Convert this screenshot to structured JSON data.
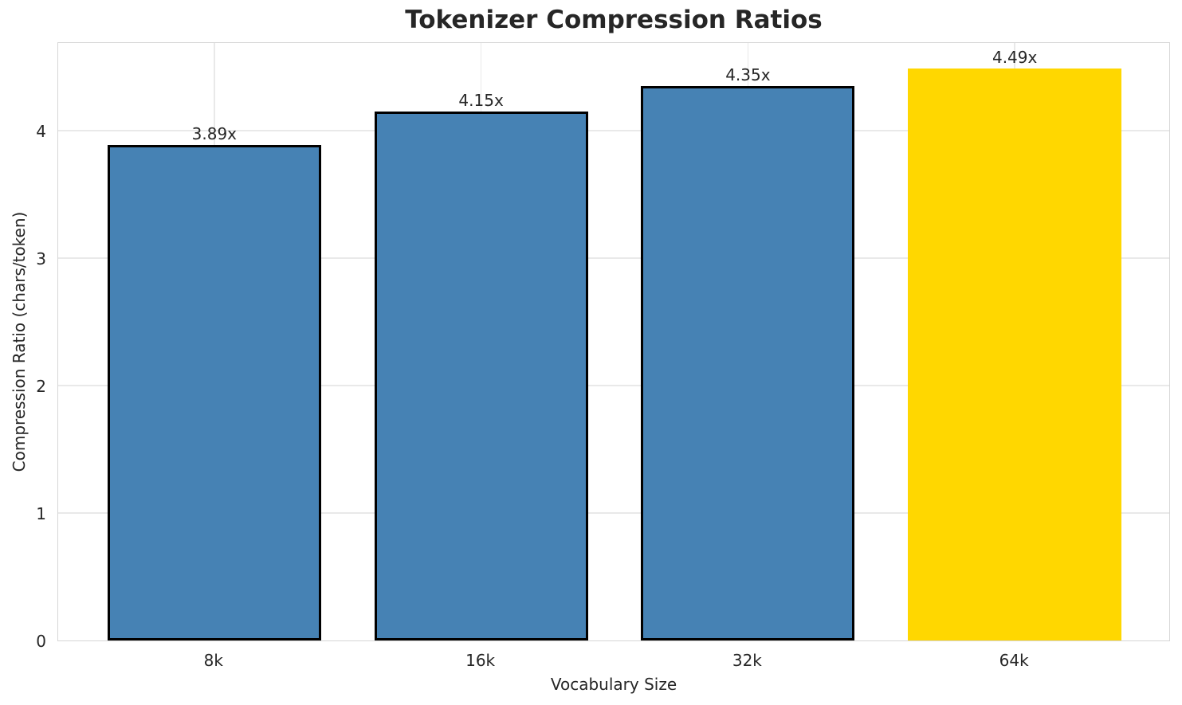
{
  "chart_data": {
    "type": "bar",
    "title": "Tokenizer Compression Ratios",
    "xlabel": "Vocabulary Size",
    "ylabel": "Compression Ratio (chars/token)",
    "categories": [
      "8k",
      "16k",
      "32k",
      "64k"
    ],
    "values": [
      3.89,
      4.15,
      4.35,
      4.49
    ],
    "bar_labels": [
      "3.89x",
      "4.15x",
      "4.35x",
      "4.49x"
    ],
    "yticks": [
      0,
      1,
      2,
      3,
      4
    ],
    "ylim": [
      0,
      4.7
    ],
    "xlim": [
      -0.585,
      3.585
    ],
    "bar_width_units": 0.8,
    "grid": true,
    "legend": "none",
    "bar_colors": [
      "#4682B4",
      "#4682B4",
      "#4682B4",
      "#FFD700"
    ],
    "bar_edge_colors": [
      "#000000",
      "#000000",
      "#000000",
      "none"
    ],
    "highlight_index": 3
  },
  "colors": {
    "background": "#ffffff",
    "grid": "#e9e9e9",
    "spine": "#d6d6d6",
    "text": "#262626",
    "accent_blue": "#4682B4",
    "accent_gold": "#FFD700"
  }
}
